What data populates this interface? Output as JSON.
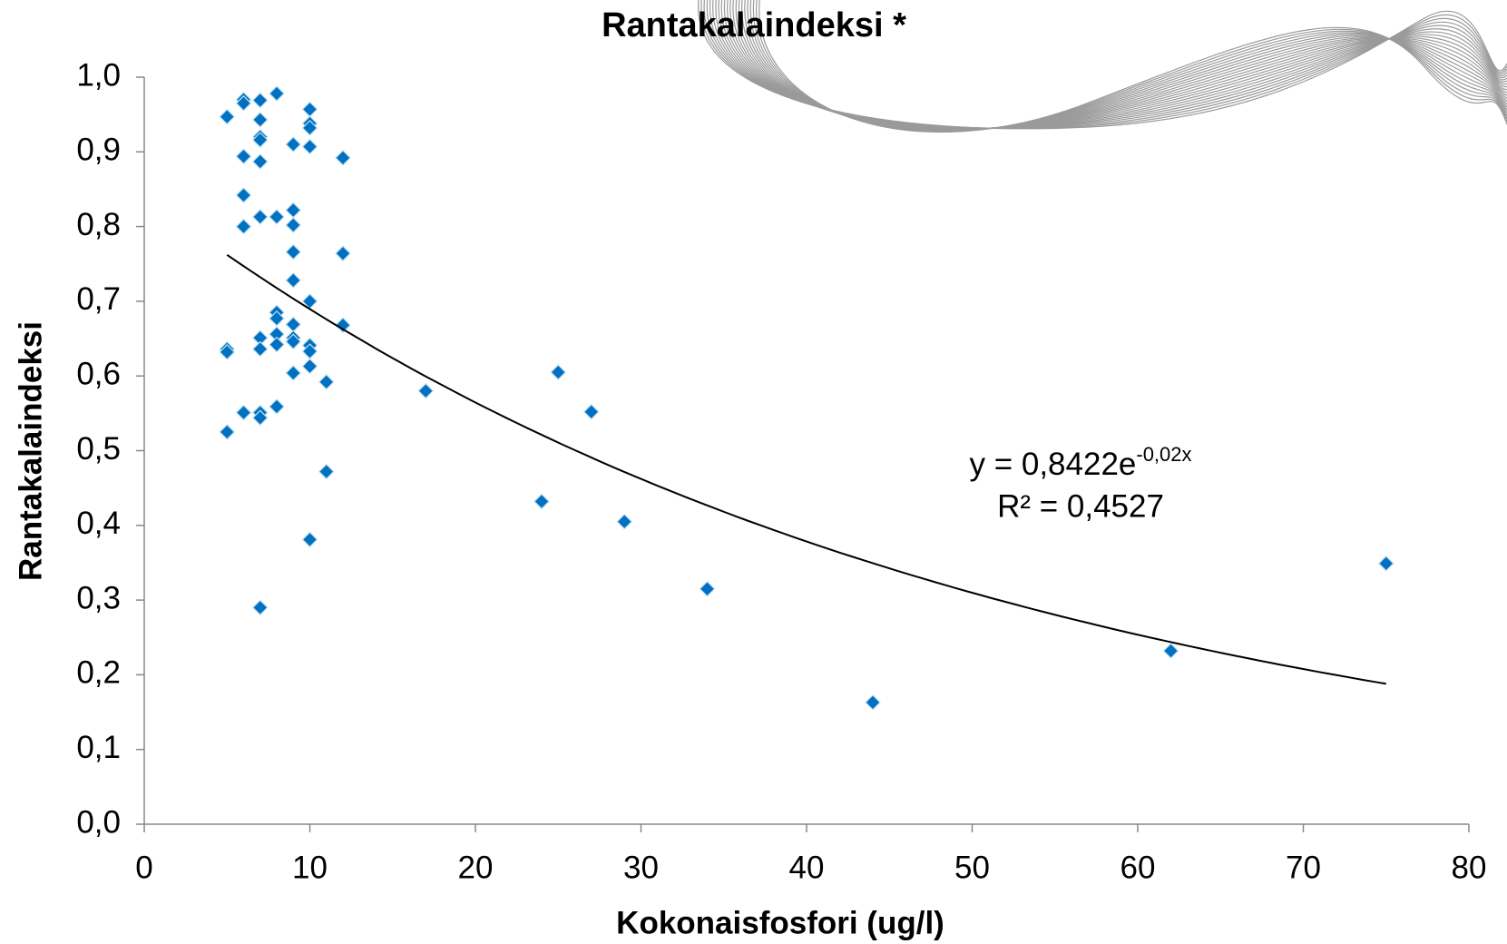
{
  "chart_data": {
    "type": "scatter",
    "title": "Rantakalaindeksi *",
    "x_label": "Kokonaisfosfori (ug/l)",
    "y_label": "Rantakalaindeksi",
    "xlim": [
      0,
      80
    ],
    "ylim": [
      0,
      1.0
    ],
    "xticks": [
      0,
      10,
      20,
      30,
      40,
      50,
      60,
      70,
      80
    ],
    "yticks": [
      {
        "value": 0,
        "label": "0,0"
      },
      {
        "value": 0.1,
        "label": "0,1"
      },
      {
        "value": 0.2,
        "label": "0,2"
      },
      {
        "value": 0.3,
        "label": "0,3"
      },
      {
        "value": 0.4,
        "label": "0,4"
      },
      {
        "value": 0.5,
        "label": "0,5"
      },
      {
        "value": 0.6,
        "label": "0,6"
      },
      {
        "value": 0.7,
        "label": "0,7"
      },
      {
        "value": 0.8,
        "label": "0,8"
      },
      {
        "value": 0.9,
        "label": "0,9"
      },
      {
        "value": 1.0,
        "label": "1,0"
      }
    ],
    "color": "#0070c0",
    "x": [
      5,
      5,
      5,
      5,
      6,
      6,
      6,
      6,
      6,
      6,
      7,
      7,
      7,
      7,
      7,
      7,
      7,
      7,
      7,
      7,
      7,
      8,
      8,
      8,
      8,
      8,
      8,
      8,
      9,
      9,
      9,
      9,
      9,
      9,
      9,
      9,
      9,
      10,
      10,
      10,
      10,
      10,
      10,
      10,
      10,
      10,
      11,
      11,
      12,
      12,
      12,
      17,
      24,
      25,
      27,
      29,
      34,
      44,
      62,
      75
    ],
    "values": [
      0.947,
      0.636,
      0.632,
      0.525,
      0.97,
      0.965,
      0.894,
      0.842,
      0.8,
      0.551,
      0.969,
      0.943,
      0.92,
      0.916,
      0.887,
      0.813,
      0.651,
      0.636,
      0.551,
      0.544,
      0.29,
      0.978,
      0.813,
      0.685,
      0.677,
      0.656,
      0.642,
      0.559,
      0.91,
      0.822,
      0.802,
      0.766,
      0.728,
      0.669,
      0.651,
      0.646,
      0.604,
      0.957,
      0.938,
      0.932,
      0.907,
      0.7,
      0.641,
      0.633,
      0.613,
      0.381,
      0.592,
      0.472,
      0.892,
      0.764,
      0.668,
      0.58,
      0.432,
      0.605,
      0.552,
      0.405,
      0.315,
      0.163,
      0.232,
      0.349
    ],
    "trendline": {
      "coefficient": 0.8422,
      "rate": -0.02,
      "x_range": [
        5,
        75
      ]
    },
    "equation": "y = 0,8422e",
    "equation_exponent": "-0,02x",
    "r_squared": "R² = 0,4527"
  }
}
